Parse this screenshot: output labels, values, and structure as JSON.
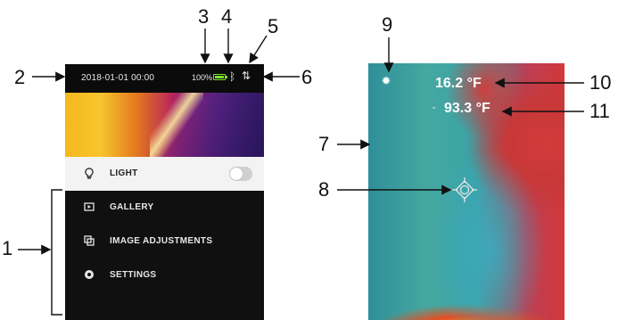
{
  "left_screen": {
    "status": {
      "datetime": "2018-01-01 00:00",
      "battery_percent": "100%",
      "battery_icon": "battery-full-icon",
      "bluetooth_icon": "bluetooth-icon",
      "usb_icon": "usb-icon"
    },
    "menu": [
      {
        "label": "LIGHT",
        "icon": "lightbulb-icon",
        "active": true,
        "toggle": "off"
      },
      {
        "label": "GALLERY",
        "icon": "gallery-icon"
      },
      {
        "label": "IMAGE ADJUSTMENTS",
        "icon": "image-adjustments-icon"
      },
      {
        "label": "SETTINGS",
        "icon": "settings-icon"
      }
    ]
  },
  "right_screen": {
    "temp_reading": "16.2 °F",
    "center_label": "≈",
    "center_temp": "93.3 °F",
    "icon": "sun-icon"
  },
  "callouts": [
    "1",
    "2",
    "3",
    "4",
    "5",
    "6",
    "7",
    "8",
    "9",
    "10",
    "11"
  ],
  "colors": {
    "battery_green": "#7adf2f",
    "menu_bg": "#101010",
    "active_row": "#f3f3f3"
  }
}
